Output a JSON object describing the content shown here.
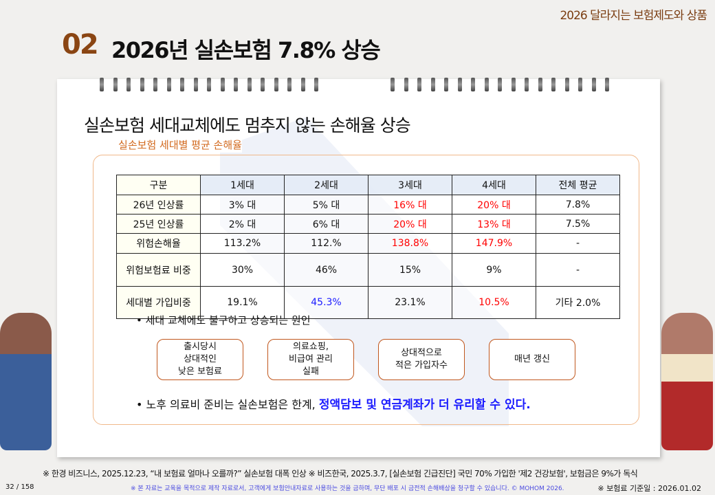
{
  "header": {
    "top_title": "2026 달라지는 보험제도와 상품",
    "section_number": "02",
    "title": "2026년 실손보험 7.8% 상승"
  },
  "subtitle": "실손보험 세대교체에도 멈추지 않는 손해율 상승",
  "box_label": "실손보험 세대별 평균 손해율",
  "table": {
    "headers": [
      "구분",
      "1세대",
      "2세대",
      "3세대",
      "4세대",
      "전체 평균"
    ],
    "rows": [
      [
        "26년 인상률",
        "3% 대",
        "5% 대",
        "16% 대",
        "20% 대",
        "7.8%"
      ],
      [
        "25년 인상률",
        "2% 대",
        "6% 대",
        "20% 대",
        "13% 대",
        "7.5%"
      ],
      [
        "위험손해율",
        "113.2%",
        "112.%",
        "138.8%",
        "147.9%",
        "-"
      ],
      [
        "위험보험료 비중",
        "30%",
        "46%",
        "15%",
        "9%",
        "-"
      ],
      [
        "세대별 가입비중",
        "19.1%",
        "45.3%",
        "23.1%",
        "10.5%",
        "기타 2.0%"
      ]
    ]
  },
  "bullet1": "• 세대 교체에도 불구하고 상승되는 원인",
  "reasons": [
    "출시당시\n상대적인\n낮은 보험료",
    "의료쇼핑,\n비급여 관리\n실패",
    "상대적으로\n적은 가입자수",
    "매년 갱신"
  ],
  "bullet2": {
    "text": "• 노후 의료비 준비는 실손보험은 한계, ",
    "emphasis": "정액담보 및 연금계좌가 더 유리할 수 있다."
  },
  "footer": {
    "source": "※ 한경 비즈니스, 2025.12.23, “내 보험료 얼마나 오를까?” 실손보험 대폭 인상 ※ 비즈한국, 2025.3.7, [실손보험 긴급진단] 국민 70% 가입한 '제2 건강보험', 보험금은 9%가 독식",
    "page": "32 / 158",
    "copyright": "※ 본 자료는 교육을 목적으로 제작 자료로서, 고객에게 보험안내자료로 사용하는 것을 금하며, 무단 배포 시 금전적 손해배상을 청구할 수 있습니다. © MOHOM 2026.",
    "date": "※ 보험료 기준일 : 2026.01.02"
  }
}
